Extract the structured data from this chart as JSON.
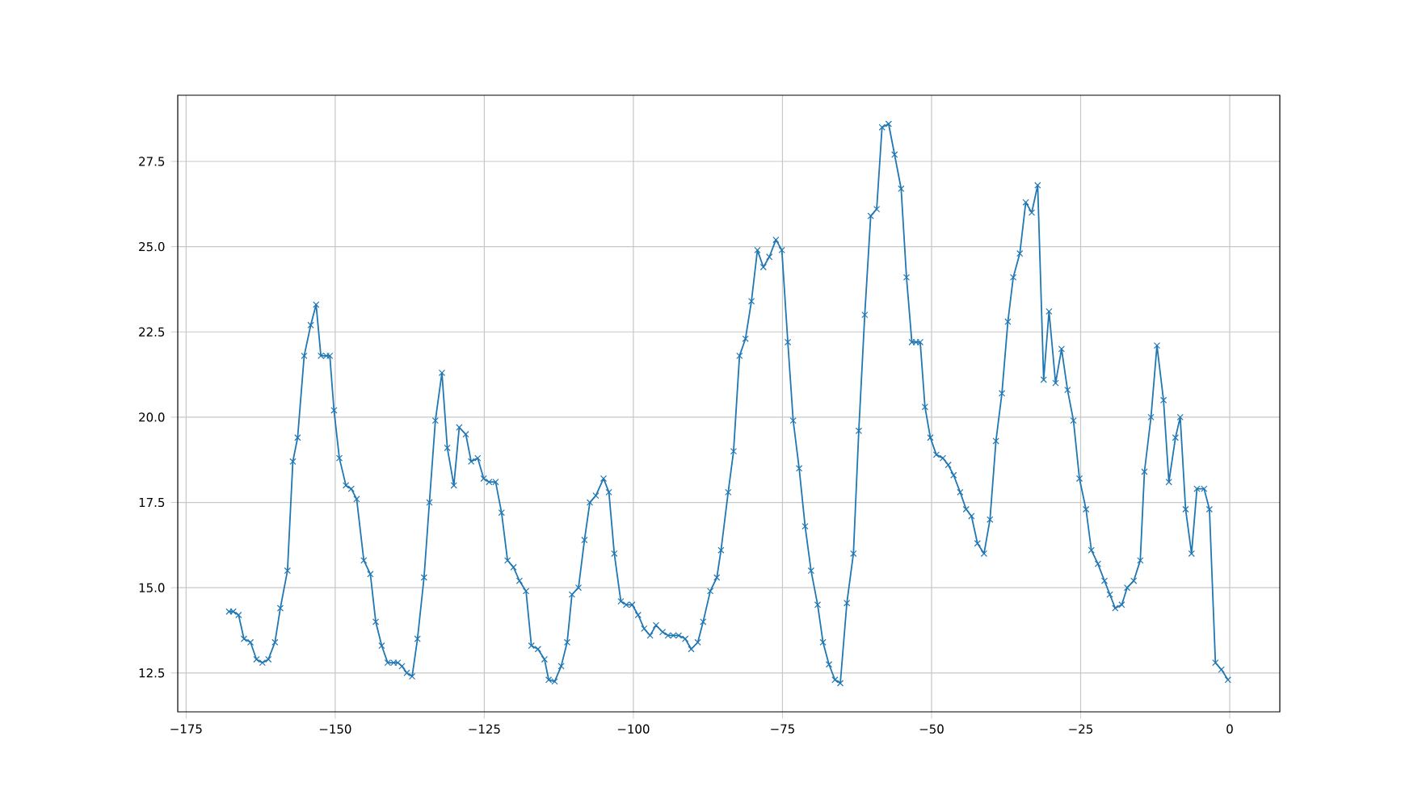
{
  "chart_data": {
    "type": "line",
    "color": "#1f77b4",
    "marker": "cross",
    "line_style": "solid",
    "grid": true,
    "x": [
      -167.8,
      -167.1,
      -166.2,
      -165.3,
      -164.2,
      -163.2,
      -162.2,
      -161.2,
      -160.1,
      -159.2,
      -158.0,
      -157.1,
      -156.3,
      -155.2,
      -154.1,
      -153.2,
      -152.4,
      -151.5,
      -150.9,
      -150.2,
      -149.3,
      -148.2,
      -147.3,
      -146.4,
      -145.2,
      -144.1,
      -143.2,
      -142.2,
      -141.2,
      -140.2,
      -139.5,
      -138.8,
      -138.0,
      -137.1,
      -136.2,
      -135.1,
      -134.2,
      -133.2,
      -132.1,
      -131.2,
      -130.1,
      -129.2,
      -128.1,
      -127.2,
      -126.1,
      -125.1,
      -124.2,
      -123.1,
      -122.1,
      -121.1,
      -120.1,
      -119.1,
      -118.0,
      -117.1,
      -116.0,
      -114.9,
      -114.2,
      -113.2,
      -112.1,
      -111.1,
      -110.3,
      -109.2,
      -108.2,
      -107.3,
      -106.3,
      -105.0,
      -104.1,
      -103.2,
      -102.1,
      -101.2,
      -100.2,
      -99.2,
      -98.2,
      -97.2,
      -96.2,
      -95.1,
      -94.2,
      -93.3,
      -92.4,
      -91.3,
      -90.3,
      -89.2,
      -88.3,
      -87.1,
      -86.0,
      -85.3,
      -84.1,
      -83.2,
      -82.2,
      -81.2,
      -80.2,
      -79.2,
      -78.2,
      -77.2,
      -76.1,
      -75.1,
      -74.1,
      -73.2,
      -72.2,
      -71.2,
      -70.2,
      -69.1,
      -68.2,
      -67.2,
      -66.2,
      -65.3,
      -64.2,
      -63.1,
      -62.2,
      -61.2,
      -60.2,
      -59.2,
      -58.3,
      -57.2,
      -56.2,
      -55.1,
      -54.2,
      -53.3,
      -52.6,
      -51.9,
      -51.1,
      -50.2,
      -49.2,
      -48.1,
      -47.2,
      -46.3,
      -45.2,
      -44.2,
      -43.3,
      -42.3,
      -41.2,
      -40.2,
      -39.2,
      -38.2,
      -37.2,
      -36.3,
      -35.2,
      -34.2,
      -33.2,
      -32.2,
      -31.2,
      -30.3,
      -29.2,
      -28.2,
      -27.2,
      -26.2,
      -25.2,
      -24.1,
      -23.2,
      -22.1,
      -21.0,
      -20.1,
      -19.2,
      -18.1,
      -17.2,
      -16.1,
      -15.0,
      -14.3,
      -13.2,
      -12.2,
      -11.1,
      -10.2,
      -9.1,
      -8.3,
      -7.4,
      -6.4,
      -5.5,
      -4.3,
      -3.4,
      -2.4,
      -1.4,
      -0.3
    ],
    "values": [
      14.3,
      14.3,
      14.2,
      13.5,
      13.4,
      12.9,
      12.8,
      12.9,
      13.4,
      14.4,
      15.5,
      18.7,
      19.4,
      21.8,
      22.7,
      23.3,
      21.8,
      21.8,
      21.8,
      20.2,
      18.8,
      18.0,
      17.9,
      17.6,
      15.8,
      15.4,
      14.0,
      13.3,
      12.8,
      12.8,
      12.8,
      12.7,
      12.5,
      12.4,
      13.5,
      15.3,
      17.5,
      19.9,
      21.3,
      19.1,
      18.0,
      19.7,
      19.5,
      18.7,
      18.8,
      18.2,
      18.1,
      18.1,
      17.2,
      15.8,
      15.6,
      15.2,
      14.9,
      13.3,
      13.2,
      12.9,
      12.3,
      12.25,
      12.7,
      13.4,
      14.8,
      15.0,
      16.4,
      17.5,
      17.7,
      18.2,
      17.8,
      16.0,
      14.6,
      14.5,
      14.5,
      14.2,
      13.8,
      13.6,
      13.9,
      13.7,
      13.6,
      13.6,
      13.6,
      13.5,
      13.2,
      13.4,
      14.0,
      14.9,
      15.3,
      16.1,
      17.8,
      19.0,
      21.8,
      22.3,
      23.4,
      24.9,
      24.4,
      24.7,
      25.2,
      24.9,
      22.2,
      19.9,
      18.5,
      16.8,
      15.5,
      14.5,
      13.4,
      12.75,
      12.3,
      12.2,
      14.55,
      16.0,
      19.6,
      23.0,
      25.9,
      26.1,
      28.5,
      28.6,
      27.7,
      26.7,
      24.1,
      22.2,
      22.2,
      22.2,
      20.3,
      19.4,
      18.9,
      18.8,
      18.6,
      18.3,
      17.8,
      17.3,
      17.1,
      16.3,
      16.0,
      17.0,
      19.3,
      20.7,
      22.8,
      24.1,
      24.8,
      26.3,
      26.0,
      26.8,
      21.1,
      23.1,
      21.0,
      22.0,
      20.8,
      19.9,
      18.2,
      17.3,
      16.1,
      15.7,
      15.2,
      14.8,
      14.4,
      14.5,
      15.0,
      15.2,
      15.8,
      18.4,
      20.0,
      22.1,
      20.5,
      18.1,
      19.4,
      20.0,
      17.3,
      16.0,
      17.9,
      17.9,
      17.3,
      12.8,
      12.6,
      12.3
    ],
    "xlim": [
      -176.4,
      8.4
    ],
    "ylim": [
      11.36,
      29.44
    ],
    "xticks": [
      {
        "value": -175,
        "label": "−175"
      },
      {
        "value": -150,
        "label": "−150"
      },
      {
        "value": -125,
        "label": "−125"
      },
      {
        "value": -100,
        "label": "−100"
      },
      {
        "value": -75,
        "label": "−75"
      },
      {
        "value": -50,
        "label": "−50"
      },
      {
        "value": -25,
        "label": "−25"
      },
      0
    ],
    "yticks": [
      12.5,
      {
        "value": 15,
        "label": "15.0"
      },
      17.5,
      {
        "value": 20,
        "label": "20.0"
      },
      22.5,
      {
        "value": 25,
        "label": "25.0"
      },
      27.5
    ]
  }
}
